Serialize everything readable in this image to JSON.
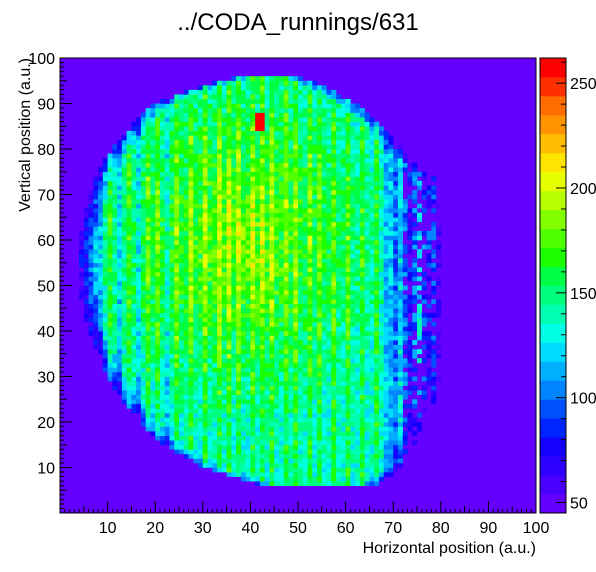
{
  "chart_data": {
    "type": "heatmap",
    "title": "../CODA_runnings/631",
    "xlabel": "Horizontal position (a.u.)",
    "ylabel": "Vertical position (a.u.)",
    "xlim": [
      0,
      100
    ],
    "ylim": [
      0,
      100
    ],
    "x_ticks": [
      10,
      20,
      30,
      40,
      50,
      60,
      70,
      80,
      90,
      100
    ],
    "y_ticks": [
      10,
      20,
      30,
      40,
      50,
      60,
      70,
      80,
      90,
      100
    ],
    "bins": {
      "x": 100,
      "y": 100
    },
    "colorbar": {
      "min": 45,
      "max": 262,
      "ticks": [
        50,
        100,
        150,
        200,
        250
      ],
      "tick_labels": [
        "50",
        "100",
        "150",
        "200",
        "250"
      ],
      "palette": [
        "#6400ff",
        "#4800ff",
        "#2d00ff",
        "#1400ff",
        "#0024ff",
        "#0050ff",
        "#0084ff",
        "#00b0ff",
        "#00dcff",
        "#00ffe4",
        "#00ffb0",
        "#00ff7c",
        "#00ff44",
        "#1cff00",
        "#50ff00",
        "#84ff00",
        "#b8ff00",
        "#e8ff00",
        "#ffe400",
        "#ffbc00",
        "#ff9400",
        "#ff6c00",
        "#ff3000",
        "#ff0000"
      ]
    },
    "background_color": "#6400ff",
    "profile": {
      "description_values": "region of elevated counts: per-row horizontal extent [row_y, x_left, x_right]",
      "extent": [
        [
          6,
          43,
          66
        ],
        [
          10,
          30,
          72
        ],
        [
          15,
          22,
          75
        ],
        [
          20,
          17,
          77
        ],
        [
          25,
          13,
          79
        ],
        [
          30,
          10,
          80
        ],
        [
          35,
          8,
          80
        ],
        [
          40,
          6,
          80
        ],
        [
          45,
          5,
          80
        ],
        [
          50,
          4,
          80
        ],
        [
          55,
          4,
          80
        ],
        [
          60,
          4,
          81
        ],
        [
          65,
          5,
          80
        ],
        [
          70,
          6,
          80
        ],
        [
          75,
          8,
          78
        ],
        [
          80,
          11,
          72
        ],
        [
          85,
          15,
          68
        ],
        [
          90,
          20,
          62
        ],
        [
          94,
          30,
          55
        ],
        [
          96,
          38,
          50
        ]
      ],
      "bright_columns": [
        11,
        15,
        19,
        21,
        25,
        28,
        31,
        34,
        36,
        38,
        41,
        43,
        45,
        48,
        50,
        53,
        55,
        58,
        61,
        64,
        67,
        72,
        76,
        79
      ],
      "peak_value": 262,
      "peak_x": 42,
      "peak_y": 86
    }
  }
}
